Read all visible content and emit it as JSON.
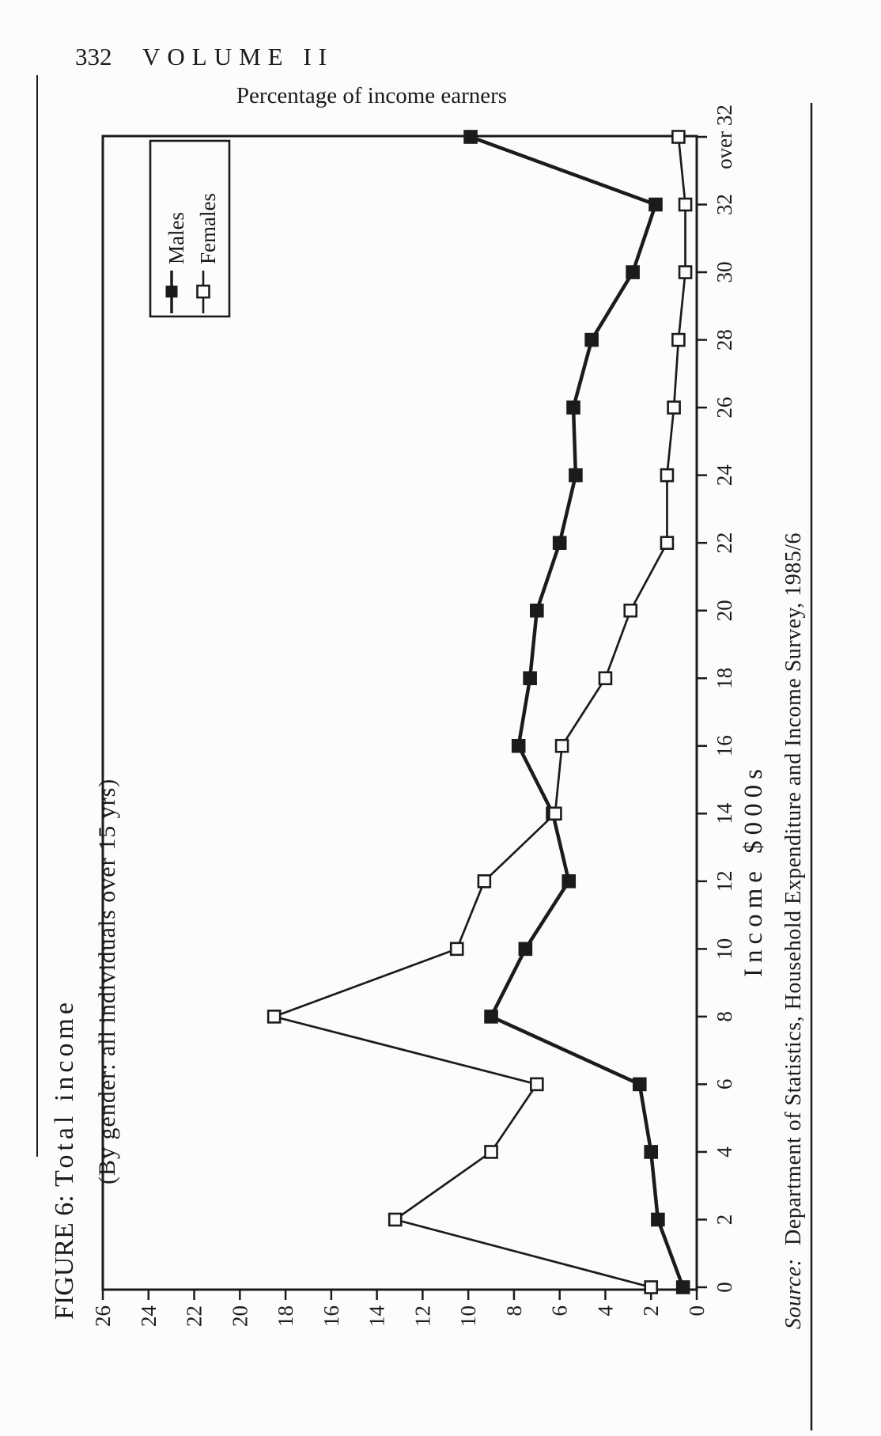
{
  "header": {
    "page_number": "332",
    "volume": "VOLUME II"
  },
  "figure": {
    "label": "FIGURE 6:",
    "title": "Total income",
    "subtitle": "(By gender: all individuals over 15 yrs)",
    "source_prefix": "Source:",
    "source_text": "Department of Statistics, Household Expenditure and Income Survey, 1985/6"
  },
  "chart_data": {
    "type": "line",
    "title": "Total income",
    "ylabel": "Percentage of income earners",
    "xlabel": "Income $000s",
    "orientation": "landscape chart rotated 90deg counterclockwise on portrait page",
    "categories": [
      "0",
      "2",
      "4",
      "6",
      "8",
      "10",
      "12",
      "14",
      "16",
      "18",
      "20",
      "22",
      "24",
      "26",
      "28",
      "30",
      "32",
      "over 32"
    ],
    "series": [
      {
        "name": "Males",
        "marker": "filled-square",
        "values": [
          0.6,
          1.7,
          2.0,
          2.5,
          9.0,
          7.5,
          5.6,
          6.3,
          7.8,
          7.3,
          7.0,
          6.0,
          5.3,
          5.4,
          4.6,
          2.8,
          1.8,
          9.9
        ]
      },
      {
        "name": "Females",
        "marker": "open-square",
        "values": [
          2.0,
          13.2,
          9.0,
          7.0,
          18.5,
          10.5,
          9.3,
          6.2,
          5.9,
          4.0,
          2.9,
          1.3,
          1.3,
          1.0,
          0.8,
          0.5,
          0.5,
          0.8
        ]
      }
    ],
    "ylim": [
      0,
      26
    ],
    "ytick_step": 2,
    "grid": "off",
    "legend_position": "top-right of rotated chart (top-left of page)",
    "ink_color": "#1b1b1b",
    "paper_color": "#fcfcfa"
  }
}
